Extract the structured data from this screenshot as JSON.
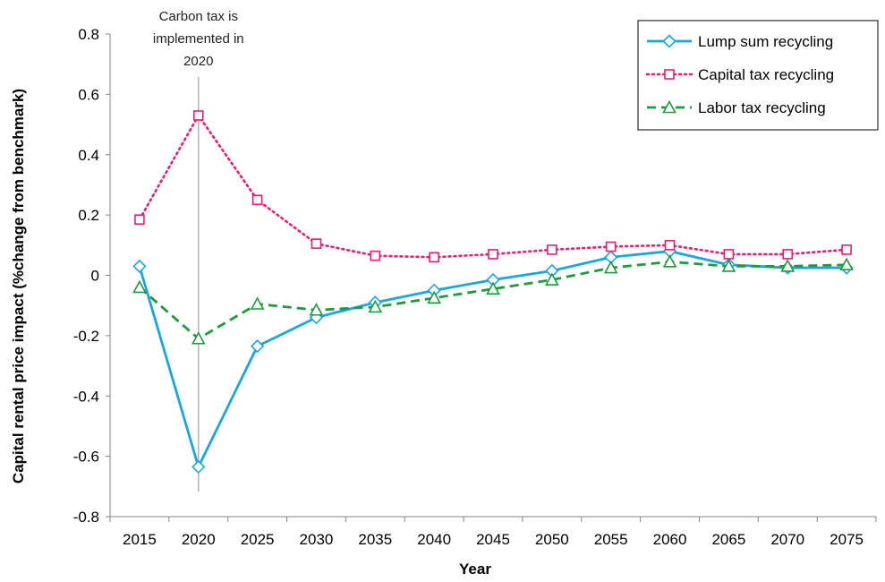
{
  "chart_data": {
    "type": "line",
    "title": "",
    "xlabel": "Year",
    "ylabel": "Capital rental price impact (%change from benchmark)",
    "categories": [
      "2015",
      "2020",
      "2025",
      "2030",
      "2035",
      "2040",
      "2045",
      "2050",
      "2055",
      "2060",
      "2065",
      "2070",
      "2075"
    ],
    "ylim": [
      -0.8,
      0.8
    ],
    "yticks": [
      -0.8,
      -0.6,
      -0.4,
      -0.2,
      0,
      0.2,
      0.4,
      0.6,
      0.8
    ],
    "ytick_labels": [
      "-0.8",
      "-0.6",
      "-0.4",
      "-0.2",
      "0",
      "0.2",
      "0.4",
      "0.6",
      "0.8"
    ],
    "grid": false,
    "legend_position": "top-right",
    "series": [
      {
        "name": "Lump sum recycling",
        "color": "#1aa7dc",
        "dash": "solid",
        "marker": "diamond",
        "values": [
          0.03,
          -0.635,
          -0.235,
          -0.14,
          -0.09,
          -0.05,
          -0.015,
          0.015,
          0.06,
          0.08,
          0.035,
          0.025,
          0.025
        ]
      },
      {
        "name": "Capital tax recycling",
        "color": "#e6206e",
        "dash": "dotted",
        "marker": "square",
        "values": [
          0.185,
          0.53,
          0.25,
          0.105,
          0.065,
          0.06,
          0.07,
          0.085,
          0.095,
          0.1,
          0.07,
          0.07,
          0.085
        ]
      },
      {
        "name": "Labor tax recycling",
        "color": "#1f9a3d",
        "dash": "dashed",
        "marker": "triangle",
        "values": [
          -0.04,
          -0.21,
          -0.095,
          -0.115,
          -0.105,
          -0.075,
          -0.045,
          -0.015,
          0.025,
          0.045,
          0.03,
          0.03,
          0.035
        ]
      }
    ],
    "annotations": [
      {
        "text_lines": [
          "Carbon tax is",
          "implemented in",
          "2020"
        ],
        "x": "2020"
      }
    ]
  }
}
